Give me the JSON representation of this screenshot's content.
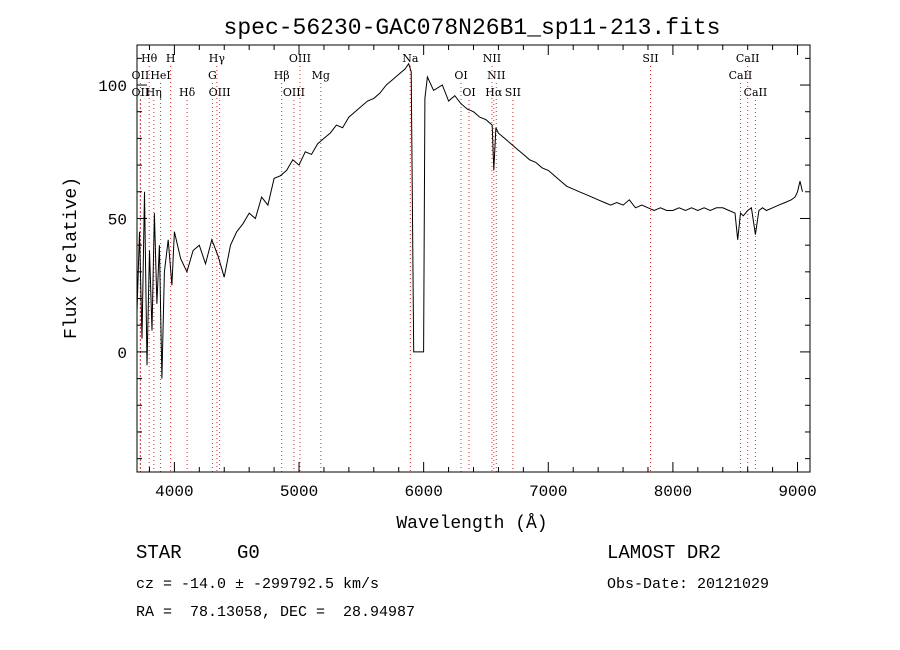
{
  "chart_data": {
    "type": "line",
    "title": "spec-56230-GAC078N26B1_sp11-213.fits",
    "xlabel": "Wavelength (Å)",
    "ylabel": "Flux (relative)",
    "xlim": [
      3700,
      9100
    ],
    "ylim": [
      -45,
      115
    ],
    "x_ticks": [
      4000,
      5000,
      6000,
      7000,
      8000,
      9000
    ],
    "y_ticks": [
      0,
      50,
      100
    ],
    "x_tick_labels": [
      "4000",
      "5000",
      "6000",
      "7000",
      "8000",
      "9000"
    ],
    "y_tick_labels": [
      "0",
      "50",
      "100"
    ],
    "grid": false,
    "line_color": "#000000",
    "marker_color": "#cc3333",
    "series": [
      {
        "x": [
          3700,
          3720,
          3740,
          3760,
          3780,
          3800,
          3820,
          3840,
          3860,
          3880,
          3900,
          3920,
          3950,
          3980,
          4000,
          4050,
          4100,
          4150,
          4200,
          4250,
          4300,
          4350,
          4400,
          4450,
          4500,
          4550,
          4600,
          4650,
          4700,
          4750,
          4800,
          4850,
          4900,
          4950,
          5000,
          5050,
          5100,
          5150,
          5200,
          5250,
          5300,
          5350,
          5400,
          5450,
          5500,
          5550,
          5600,
          5650,
          5700,
          5750,
          5800,
          5850,
          5880,
          5900,
          5920,
          6000,
          6010,
          6030,
          6080,
          6150,
          6200,
          6250,
          6300,
          6350,
          6400,
          6450,
          6500,
          6550,
          6563,
          6580,
          6600,
          6650,
          6700,
          6750,
          6800,
          6850,
          6900,
          6950,
          7000,
          7050,
          7100,
          7150,
          7200,
          7250,
          7300,
          7350,
          7400,
          7450,
          7500,
          7550,
          7600,
          7650,
          7700,
          7750,
          7800,
          7850,
          7900,
          7950,
          8000,
          8050,
          8100,
          8150,
          8200,
          8250,
          8300,
          8350,
          8400,
          8450,
          8498,
          8520,
          8542,
          8565,
          8600,
          8630,
          8662,
          8690,
          8720,
          8750,
          8800,
          8850,
          8900,
          8950,
          8980,
          9000,
          9020,
          9040
        ],
        "y": [
          15,
          45,
          5,
          60,
          -5,
          38,
          8,
          52,
          18,
          40,
          -10,
          30,
          42,
          25,
          45,
          35,
          30,
          38,
          40,
          33,
          42,
          36,
          28,
          40,
          45,
          48,
          52,
          50,
          58,
          55,
          65,
          66,
          68,
          72,
          70,
          75,
          74,
          78,
          80,
          82,
          85,
          84,
          88,
          90,
          92,
          94,
          95,
          97,
          100,
          102,
          104,
          106,
          108,
          105,
          0,
          0,
          95,
          103,
          98,
          100,
          94,
          96,
          93,
          91,
          90,
          88,
          87,
          85,
          68,
          84,
          82,
          80,
          78,
          76,
          74,
          72,
          71,
          69,
          68,
          66,
          64,
          62,
          61,
          60,
          59,
          58,
          57,
          56,
          55,
          56,
          55,
          57,
          54,
          55,
          54,
          53,
          54,
          53,
          53,
          54,
          53,
          54,
          53,
          54,
          53,
          54,
          54,
          53,
          52,
          42,
          52,
          51,
          53,
          54,
          44,
          53,
          54,
          53,
          54,
          55,
          56,
          57,
          58,
          60,
          64,
          60
        ]
      }
    ],
    "line_markers": [
      {
        "label": "Hθ",
        "x": 3798,
        "row": 0
      },
      {
        "label": "H",
        "x": 3970,
        "row": 0
      },
      {
        "label": "Hγ",
        "x": 4341,
        "row": 0
      },
      {
        "label": "OIII",
        "x": 5007,
        "row": 0
      },
      {
        "label": "Na",
        "x": 5893,
        "row": 0
      },
      {
        "label": "NII",
        "x": 6548,
        "row": 0
      },
      {
        "label": "SII",
        "x": 7820,
        "row": 0
      },
      {
        "label": "CaII",
        "x": 8600,
        "row": 0
      },
      {
        "label": "OII",
        "x": 3727,
        "row": 1
      },
      {
        "label": "HeI",
        "x": 3889,
        "row": 1
      },
      {
        "label": "G",
        "x": 4305,
        "row": 1
      },
      {
        "label": "Hβ",
        "x": 4861,
        "row": 1
      },
      {
        "label": "Mg",
        "x": 5175,
        "row": 1
      },
      {
        "label": "OI",
        "x": 6300,
        "row": 1
      },
      {
        "label": "NII",
        "x": 6583,
        "row": 1
      },
      {
        "label": "CaII",
        "x": 8542,
        "row": 1
      },
      {
        "label": "OII",
        "x": 3727,
        "row": 2
      },
      {
        "label": "Hη",
        "x": 3835,
        "row": 2
      },
      {
        "label": "Hδ",
        "x": 4102,
        "row": 2
      },
      {
        "label": "OIII",
        "x": 4363,
        "row": 2
      },
      {
        "label": "OIII",
        "x": 4959,
        "row": 2
      },
      {
        "label": "OI",
        "x": 6364,
        "row": 2
      },
      {
        "label": "Hα",
        "x": 6563,
        "row": 2
      },
      {
        "label": "SII",
        "x": 6716,
        "row": 2
      },
      {
        "label": "CaII",
        "x": 8662,
        "row": 2
      }
    ]
  },
  "info": {
    "object_class": "STAR",
    "subclass": "G0",
    "survey": "LAMOST DR2",
    "cz": "cz = -14.0 ± -299792.5 km/s",
    "obs_date": "Obs-Date: 20121029",
    "coords": "RA =  78.13058, DEC =  28.94987"
  }
}
